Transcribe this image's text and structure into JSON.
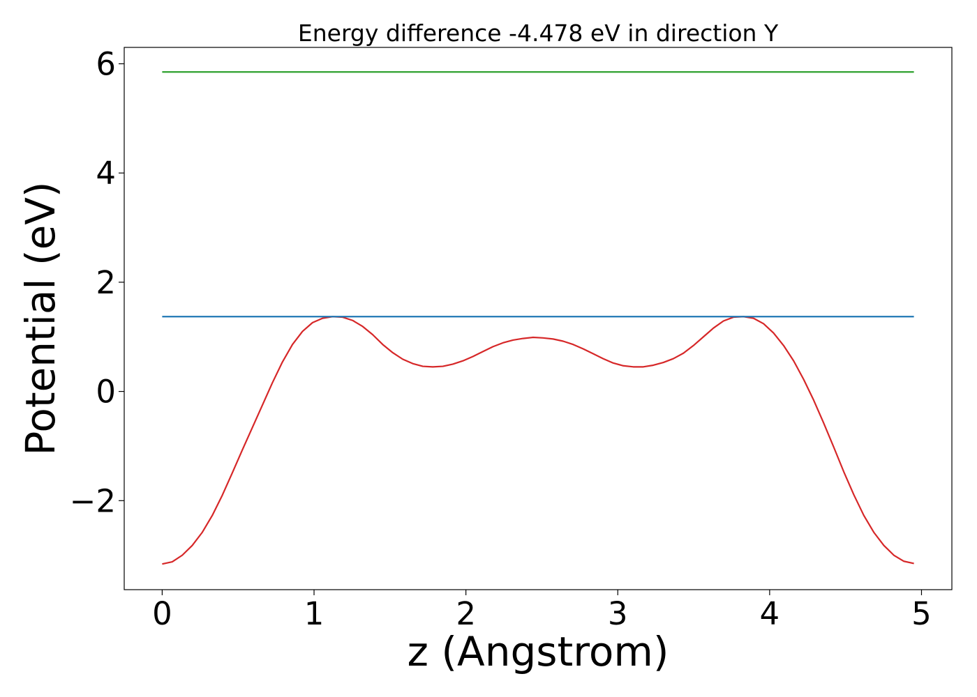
{
  "chart_data": {
    "type": "line",
    "title": "Energy difference -4.478 eV in direction Y",
    "xlabel": "z (Angstrom)",
    "ylabel": "Potential (eV)",
    "xlim": [
      -0.25,
      5.2
    ],
    "ylim": [
      -3.63,
      6.3
    ],
    "xticks": [
      0,
      1,
      2,
      3,
      4,
      5
    ],
    "xtick_labels": [
      "0",
      "1",
      "2",
      "3",
      "4",
      "5"
    ],
    "yticks": [
      -2,
      0,
      2,
      4,
      6
    ],
    "ytick_labels": [
      "−2",
      "0",
      "2",
      "4",
      "6"
    ],
    "grid": false,
    "legend": "none",
    "series": [
      {
        "color": "#d62728",
        "x": [
          0.0,
          0.066,
          0.132,
          0.198,
          0.264,
          0.33,
          0.396,
          0.462,
          0.528,
          0.594,
          0.66,
          0.726,
          0.792,
          0.858,
          0.924,
          0.99,
          1.056,
          1.122,
          1.188,
          1.254,
          1.32,
          1.386,
          1.452,
          1.518,
          1.584,
          1.65,
          1.716,
          1.782,
          1.848,
          1.914,
          1.98,
          2.046,
          2.112,
          2.178,
          2.244,
          2.31,
          2.376,
          2.442,
          2.508,
          2.574,
          2.64,
          2.706,
          2.772,
          2.838,
          2.904,
          2.97,
          3.036,
          3.102,
          3.168,
          3.234,
          3.3,
          3.366,
          3.432,
          3.498,
          3.564,
          3.63,
          3.696,
          3.762,
          3.828,
          3.894,
          3.96,
          4.026,
          4.092,
          4.158,
          4.224,
          4.29,
          4.356,
          4.422,
          4.488,
          4.554,
          4.62,
          4.686,
          4.752,
          4.818,
          4.884,
          4.95
        ],
        "values": [
          -3.16,
          -3.12,
          -3.0,
          -2.82,
          -2.58,
          -2.27,
          -1.9,
          -1.49,
          -1.07,
          -0.66,
          -0.25,
          0.16,
          0.54,
          0.86,
          1.1,
          1.26,
          1.34,
          1.37,
          1.36,
          1.3,
          1.19,
          1.04,
          0.86,
          0.71,
          0.59,
          0.51,
          0.46,
          0.45,
          0.46,
          0.5,
          0.56,
          0.64,
          0.73,
          0.82,
          0.89,
          0.94,
          0.97,
          0.99,
          0.98,
          0.96,
          0.92,
          0.86,
          0.78,
          0.69,
          0.6,
          0.52,
          0.47,
          0.45,
          0.45,
          0.48,
          0.53,
          0.6,
          0.7,
          0.84,
          1.0,
          1.16,
          1.29,
          1.36,
          1.37,
          1.34,
          1.24,
          1.07,
          0.84,
          0.56,
          0.22,
          -0.16,
          -0.58,
          -1.02,
          -1.47,
          -1.89,
          -2.27,
          -2.58,
          -2.82,
          -3.0,
          -3.11,
          -3.15
        ]
      },
      {
        "color": "#1f77b4",
        "x": [
          0.0,
          4.95
        ],
        "values": [
          1.37,
          1.37
        ]
      },
      {
        "color": "#2ca02c",
        "x": [
          0.0,
          4.95
        ],
        "values": [
          5.85,
          5.85
        ]
      }
    ]
  }
}
